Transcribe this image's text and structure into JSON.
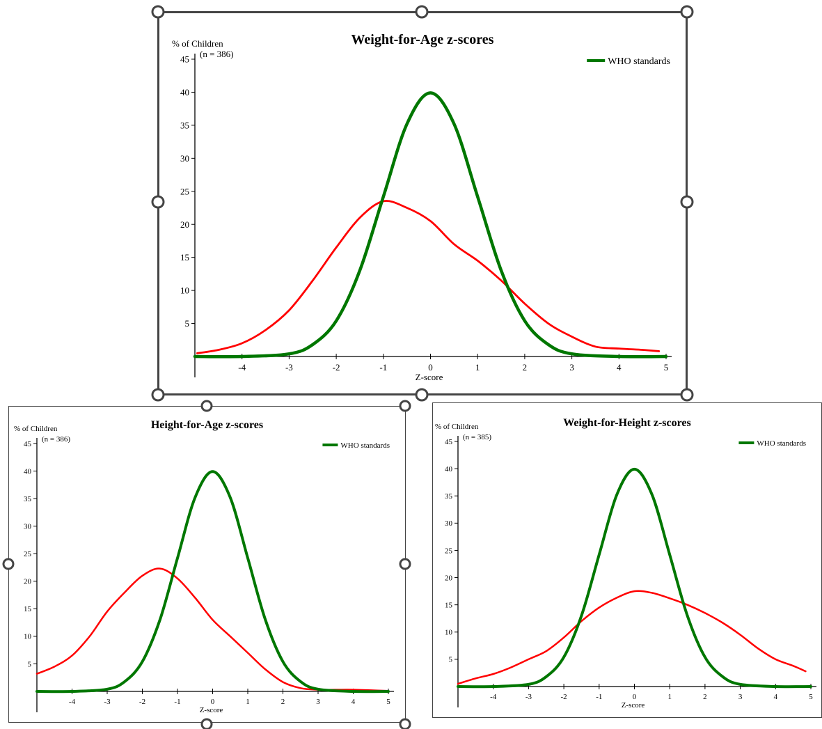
{
  "chart_data": [
    {
      "id": "wfa",
      "type": "line",
      "title": "Weight-for-Age z-scores",
      "ylabel": "% of Children",
      "sample": "(n = 386)",
      "xlabel": "Z-score",
      "xlim": [
        -5,
        5
      ],
      "ylim": [
        0,
        45
      ],
      "x_ticks": [
        -4,
        -3,
        -2,
        -1,
        0,
        1,
        2,
        3,
        4,
        5
      ],
      "y_ticks": [
        5,
        10,
        15,
        20,
        25,
        30,
        35,
        40,
        45
      ],
      "legend": {
        "placement": "top-right",
        "label": "WHO standards"
      },
      "series": [
        {
          "role": "sample",
          "color": "#ff0000",
          "x": [
            -4.95,
            -4.5,
            -4,
            -3.5,
            -3,
            -2.5,
            -2,
            -1.5,
            -1,
            -0.5,
            0,
            0.5,
            1,
            1.5,
            2,
            2.5,
            3,
            3.5,
            4,
            4.5,
            4.85
          ],
          "y": [
            0.5,
            1,
            2,
            4,
            7,
            11.5,
            16.5,
            21,
            23.5,
            22.5,
            20.5,
            17,
            14.5,
            11.5,
            8,
            5,
            3,
            1.5,
            1.2,
            1,
            0.8
          ]
        },
        {
          "role": "reference",
          "name": "WHO standards",
          "color": "#007700",
          "x": [
            -5,
            -4,
            -3,
            -2.5,
            -2,
            -1.5,
            -1,
            -0.5,
            0,
            0.5,
            1,
            1.5,
            2,
            2.5,
            3,
            4,
            5
          ],
          "y": [
            0,
            0,
            0.4,
            1.8,
            5.4,
            13,
            24.2,
            35.2,
            39.9,
            35.2,
            24.2,
            13,
            5.4,
            1.8,
            0.4,
            0,
            0
          ]
        }
      ]
    },
    {
      "id": "hfa",
      "type": "line",
      "title": "Height-for-Age z-scores",
      "ylabel": "% of Children",
      "sample": "(n = 386)",
      "xlabel": "Z-score",
      "xlim": [
        -5,
        5
      ],
      "ylim": [
        0,
        45
      ],
      "x_ticks": [
        -4,
        -3,
        -2,
        -1,
        0,
        1,
        2,
        3,
        4,
        5
      ],
      "y_ticks": [
        5,
        10,
        15,
        20,
        25,
        30,
        35,
        40,
        45
      ],
      "legend": {
        "placement": "top-right",
        "label": "WHO standards"
      },
      "series": [
        {
          "role": "sample",
          "color": "#ff0000",
          "x": [
            -5,
            -4.5,
            -4,
            -3.5,
            -3,
            -2.5,
            -2,
            -1.5,
            -1,
            -0.5,
            0,
            0.5,
            1,
            1.5,
            2,
            2.5,
            3,
            3.5,
            4,
            4.5,
            5
          ],
          "y": [
            3.2,
            4.5,
            6.5,
            10,
            14.5,
            18,
            21,
            22.3,
            20.5,
            17,
            13,
            10,
            7,
            4,
            1.7,
            0.6,
            0.3,
            0.3,
            0.3,
            0.2,
            0.1
          ]
        },
        {
          "role": "reference",
          "name": "WHO standards",
          "color": "#007700",
          "x": [
            -5,
            -4,
            -3,
            -2.5,
            -2,
            -1.5,
            -1,
            -0.5,
            0,
            0.5,
            1,
            1.5,
            2,
            2.5,
            3,
            4,
            5
          ],
          "y": [
            0,
            0,
            0.4,
            1.8,
            5.4,
            13,
            24.2,
            35.2,
            39.9,
            35.2,
            24.2,
            13,
            5.4,
            1.8,
            0.4,
            0,
            0
          ]
        }
      ]
    },
    {
      "id": "wfh",
      "type": "line",
      "title": "Weight-for-Height z-scores",
      "ylabel": "% of Children",
      "sample": "(n = 385)",
      "xlabel": "Z-score",
      "xlim": [
        -5,
        5
      ],
      "ylim": [
        0,
        45
      ],
      "x_ticks": [
        -4,
        -3,
        -2,
        -1,
        0,
        1,
        2,
        3,
        4,
        5
      ],
      "y_ticks": [
        5,
        10,
        15,
        20,
        25,
        30,
        35,
        40,
        45
      ],
      "legend": {
        "placement": "top-right",
        "label": "WHO standards"
      },
      "series": [
        {
          "role": "sample",
          "color": "#ff0000",
          "x": [
            -5,
            -4.5,
            -4,
            -3.5,
            -3,
            -2.5,
            -2,
            -1.5,
            -1,
            -0.5,
            0,
            0.5,
            1,
            1.5,
            2,
            2.5,
            3,
            3.5,
            4,
            4.5,
            4.85
          ],
          "y": [
            0.5,
            1.5,
            2.3,
            3.5,
            5,
            6.5,
            9,
            12,
            14.5,
            16.3,
            17.5,
            17.2,
            16.2,
            15,
            13.5,
            11.7,
            9.5,
            7,
            5,
            3.8,
            2.8
          ]
        },
        {
          "role": "reference",
          "name": "WHO standards",
          "color": "#007700",
          "x": [
            -5,
            -4,
            -3,
            -2.5,
            -2,
            -1.5,
            -1,
            -0.5,
            0,
            0.5,
            1,
            1.5,
            2,
            2.5,
            3,
            4,
            5
          ],
          "y": [
            0,
            0,
            0.4,
            1.8,
            5.4,
            13,
            24.2,
            35.2,
            39.9,
            35.2,
            24.2,
            13,
            5.4,
            1.8,
            0.4,
            0,
            0
          ]
        }
      ]
    }
  ]
}
